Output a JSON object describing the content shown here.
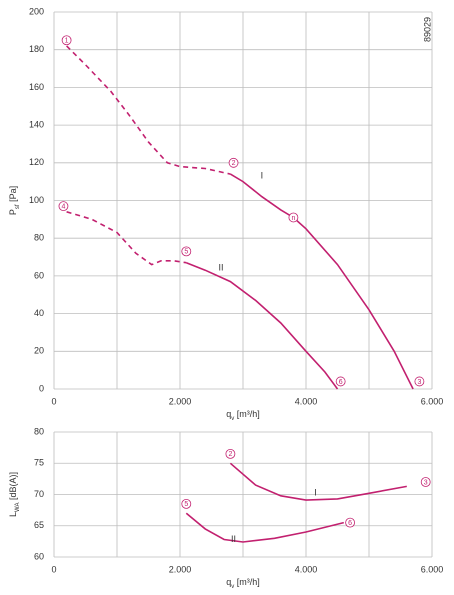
{
  "chart_data": [
    {
      "type": "line",
      "code": "89029",
      "ylabel": {
        "text": "P",
        "subscript": "sf",
        "unit": " [Pa]"
      },
      "xlabel": {
        "text": "q",
        "subscript": "v",
        "unit": " [m³/h]"
      },
      "xlim": [
        0,
        6000
      ],
      "ylim": [
        0,
        200
      ],
      "xticks": [
        0,
        {
          "value": 1000,
          "label": null
        },
        {
          "value": 2000,
          "label": "2.000"
        },
        {
          "value": 3000,
          "label": null
        },
        {
          "value": 4000,
          "label": "4.000"
        },
        {
          "value": 5000,
          "label": null
        },
        {
          "value": 6000,
          "label": "6.000"
        }
      ],
      "yticks": [
        0,
        20,
        40,
        60,
        80,
        100,
        120,
        140,
        160,
        180,
        200
      ],
      "grid": true,
      "series": [
        {
          "name": "I",
          "color": "#c2206f",
          "dashed_until_x": 2800,
          "name_at": [
            3300,
            113
          ],
          "x": [
            200,
            500,
            900,
            1200,
            1500,
            1800,
            2000,
            2400,
            2800,
            3000,
            3300,
            3600,
            3800,
            4000,
            4500,
            5000,
            5400,
            5700
          ],
          "values": [
            182,
            172,
            158,
            145,
            131,
            120,
            118,
            117,
            114,
            110,
            102,
            95,
            91,
            85,
            66,
            42,
            20,
            0
          ]
        },
        {
          "name": "II",
          "color": "#c2206f",
          "dashed_until_x": 2100,
          "name_at": [
            2650,
            64
          ],
          "x": [
            200,
            600,
            1000,
            1300,
            1550,
            1700,
            1900,
            2100,
            2400,
            2800,
            3200,
            3600,
            4000,
            4300,
            4500
          ],
          "values": [
            94,
            90,
            83,
            72,
            66,
            68,
            68,
            67,
            63,
            57,
            47,
            35,
            20,
            9,
            0
          ]
        }
      ],
      "annotations": [
        {
          "label": "1",
          "x": 200,
          "y": 185
        },
        {
          "label": "2",
          "x": 2850,
          "y": 120
        },
        {
          "label": "3",
          "x": 5800,
          "y": 4
        },
        {
          "label": "4",
          "x": 150,
          "y": 97
        },
        {
          "label": "5",
          "x": 2100,
          "y": 73
        },
        {
          "label": "6",
          "x": 4550,
          "y": 4
        },
        {
          "label": "n",
          "x": 3800,
          "y": 91
        }
      ]
    },
    {
      "type": "line",
      "ylabel": {
        "text": "L",
        "subscript": "WA",
        "unit": " [dB(A)]"
      },
      "xlabel": {
        "text": "q",
        "subscript": "v",
        "unit": " [m³/h]"
      },
      "xlim": [
        0,
        6000
      ],
      "ylim": [
        60,
        80
      ],
      "xticks": [
        0,
        {
          "value": 1000,
          "label": null
        },
        {
          "value": 2000,
          "label": "2.000"
        },
        {
          "value": 3000,
          "label": null
        },
        {
          "value": 4000,
          "label": "4.000"
        },
        {
          "value": 5000,
          "label": null
        },
        {
          "value": 6000,
          "label": "6.000"
        }
      ],
      "yticks": [
        60,
        65,
        70,
        75,
        80
      ],
      "grid": true,
      "series": [
        {
          "name": "I",
          "color": "#c2206f",
          "name_at": [
            4150,
            70.2
          ],
          "x": [
            2800,
            3200,
            3600,
            4000,
            4500,
            5000,
            5600
          ],
          "values": [
            75,
            71.5,
            69.8,
            69.1,
            69.3,
            70.2,
            71.3
          ]
        },
        {
          "name": "II",
          "color": "#c2206f",
          "name_at": [
            2850,
            62.8
          ],
          "x": [
            2100,
            2400,
            2700,
            3000,
            3500,
            4000,
            4600
          ],
          "values": [
            67,
            64.5,
            62.8,
            62.4,
            63,
            64,
            65.5
          ]
        }
      ],
      "annotations": [
        {
          "label": "2",
          "x": 2800,
          "y": 76.5
        },
        {
          "label": "3",
          "x": 5900,
          "y": 72
        },
        {
          "label": "5",
          "x": 2100,
          "y": 68.5
        },
        {
          "label": "6",
          "x": 4700,
          "y": 65.5
        }
      ]
    }
  ]
}
